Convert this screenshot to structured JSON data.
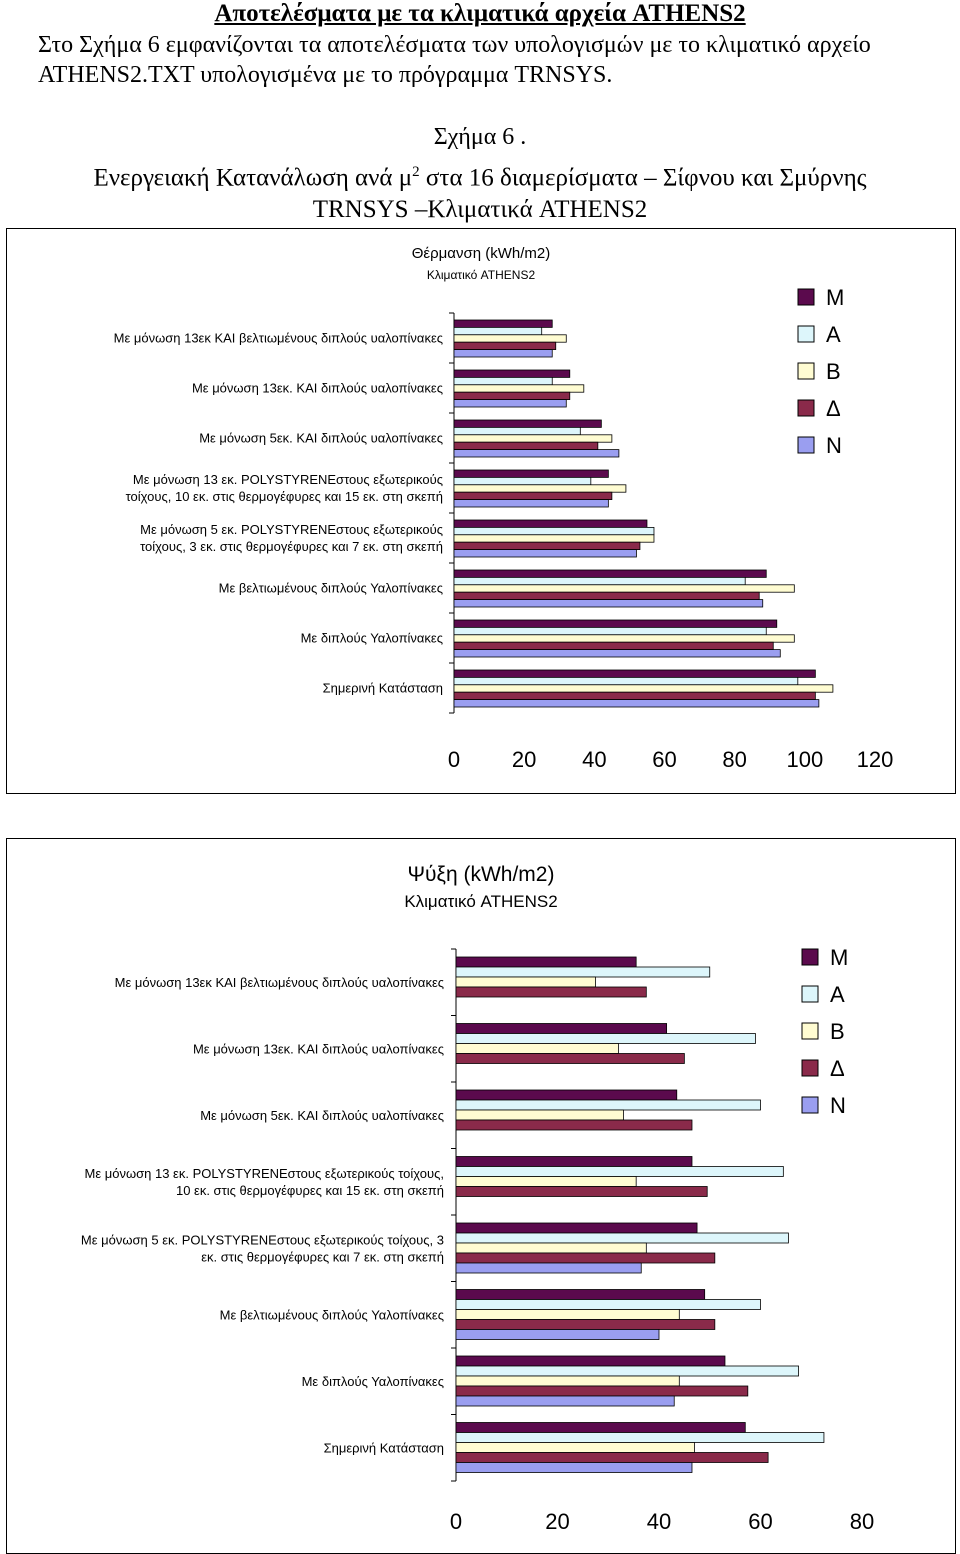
{
  "document": {
    "heading": "Αποτελέσματα με τα κλιματικά αρχεία ATHENS2",
    "paragraph": "Στο Σχήμα 6 εμφανίζονται τα αποτελέσματα των υπολογισμών με το κλιματικό αρχείο ATHENS2.TXT υπολογισμένα με το πρόγραμμα TRNSYS.",
    "figure_label": "Σχήμα 6 .",
    "figure_title_part1": "Ενεργειακή Κατανάλωση ανά μ",
    "figure_title_sup": "2",
    "figure_title_part2": " στα 16 διαμερίσματα – Σίφνου και Σμύρνης",
    "figure_title_line2": "TRNSYS –Κλιματικά ATHENS2"
  },
  "colors": {
    "M": "#5b0a4d",
    "A": "#ddf6fb",
    "B": "#fffcd2",
    "Delta": "#8a2a4a",
    "N": "#9a9ef0"
  },
  "chart_data": [
    {
      "type": "bar",
      "orientation": "horizontal",
      "title": "Θέρμανση (kWh/m2)",
      "subtitle": "Κλιματικό ATHENS2",
      "categories": [
        [
          "Με μόνωση 13εκ   ΚΑΙ βελτιωμένους διπλούς υαλοπίνακες"
        ],
        [
          "Με μόνωση 13εκ. ΚΑΙ διπλούς υαλοπίνακες"
        ],
        [
          "Με μόνωση 5εκ. ΚΑΙ διπλούς υαλοπίνακες"
        ],
        [
          "Με μόνωση 13 εκ. POLYSTYRENEστους εξωτερικούς",
          "τοίχους, 10  εκ. στις θερμογέφυρες και 15 εκ. στη σκεπή"
        ],
        [
          "Με μόνωση 5 εκ. POLYSTYRENEστους εξωτερικούς",
          "τοίχους, 3  εκ. στις θερμογέφυρες και 7 εκ. στη σκεπή"
        ],
        [
          "Με βελτιωμένους διπλούς Υαλοπίνακες"
        ],
        [
          "Με διπλούς Υαλοπίνακες"
        ],
        [
          "Σημερινή Κατάσταση"
        ]
      ],
      "series": [
        {
          "name": "Μ",
          "values": [
            28,
            33,
            42,
            44,
            55,
            89,
            92,
            103
          ]
        },
        {
          "name": "Α",
          "values": [
            25,
            28,
            36,
            39,
            57,
            83,
            89,
            98
          ]
        },
        {
          "name": "Β",
          "values": [
            32,
            37,
            45,
            49,
            57,
            97,
            97,
            108
          ]
        },
        {
          "name": "Δ",
          "values": [
            29,
            33,
            41,
            45,
            53,
            87,
            91,
            103
          ]
        },
        {
          "name": "Ν",
          "values": [
            28,
            32,
            47,
            44,
            52,
            88,
            93,
            104
          ]
        }
      ],
      "xlim": [
        0,
        120
      ],
      "xticks": [
        "0",
        "20",
        "40",
        "60",
        "80",
        "100",
        "120"
      ],
      "legend_position": "right"
    },
    {
      "type": "bar",
      "orientation": "horizontal",
      "title": "Ψύξη (kWh/m2)",
      "subtitle": "Κλιματικό ATHENS2",
      "categories": [
        [
          "Με μόνωση 13εκ   ΚΑΙ βελτιωμένους διπλούς υαλοπίνακες"
        ],
        [
          "Με μόνωση 13εκ. ΚΑΙ διπλούς υαλοπίνακες"
        ],
        [
          "Με μόνωση 5εκ. ΚΑΙ διπλούς υαλοπίνακες"
        ],
        [
          "Με μόνωση 13 εκ. POLYSTYRENEστους εξωτερικούς τοίχους,",
          "10  εκ. στις θερμογέφυρες και 15 εκ. στη σκεπή"
        ],
        [
          "Με μόνωση 5 εκ. POLYSTYRENEστους εξωτερικούς τοίχους, 3",
          "εκ. στις θερμογέφυρες και 7 εκ. στη σκεπή"
        ],
        [
          "Με βελτιωμένους διπλούς Υαλοπίνακες"
        ],
        [
          "Με διπλούς Υαλοπίνακες"
        ],
        [
          "Σημερινή Κατάσταση"
        ]
      ],
      "series": [
        {
          "name": "Μ",
          "values": [
            35.5,
            41.5,
            43.5,
            46.5,
            47.5,
            49,
            53,
            57
          ]
        },
        {
          "name": "Α",
          "values": [
            50,
            59,
            60,
            64.5,
            65.5,
            60,
            67.5,
            72.5
          ]
        },
        {
          "name": "Β",
          "values": [
            27.5,
            32,
            33,
            35.5,
            37.5,
            44,
            44,
            47
          ]
        },
        {
          "name": "Δ",
          "values": [
            37.5,
            45,
            46.5,
            49.5,
            51,
            51,
            57.5,
            61.5
          ]
        },
        {
          "name": "Ν",
          "values": [
            0,
            0,
            0,
            0,
            36.5,
            40,
            43,
            46.5
          ]
        }
      ],
      "xlim": [
        0,
        80
      ],
      "xticks": [
        "0",
        "20",
        "40",
        "60",
        "80"
      ],
      "legend_position": "right"
    }
  ]
}
